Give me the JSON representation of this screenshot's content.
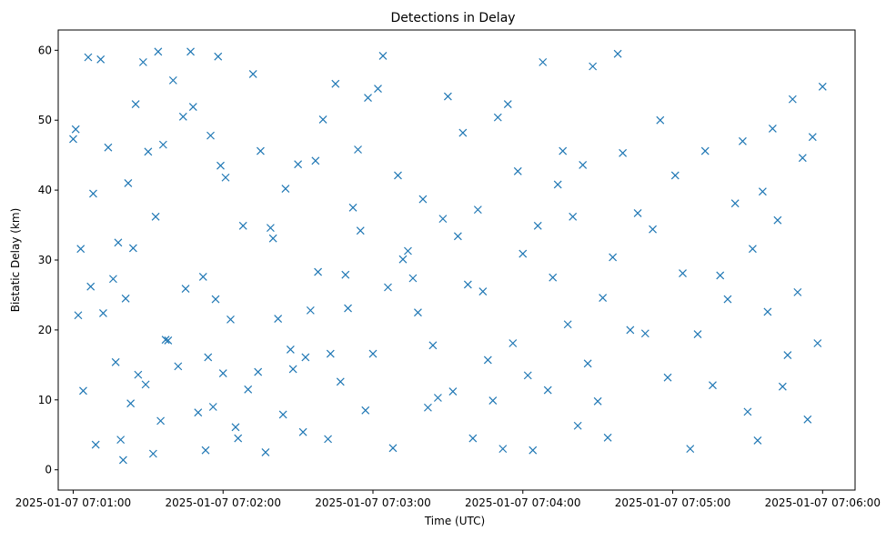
{
  "chart_data": {
    "type": "scatter",
    "title": "Detections in Delay",
    "xlabel": "Time (UTC)",
    "ylabel": "Bistatic Delay (km)",
    "xlim": [
      "2025-01-07 07:00:54",
      "2025-01-07 07:06:13"
    ],
    "ylim": [
      -2.9,
      62.9
    ],
    "xticks": [
      {
        "value": "2025-01-07 07:01:00",
        "label": "2025-01-07 07:01:00"
      },
      {
        "value": "2025-01-07 07:02:00",
        "label": "2025-01-07 07:02:00"
      },
      {
        "value": "2025-01-07 07:03:00",
        "label": "2025-01-07 07:03:00"
      },
      {
        "value": "2025-01-07 07:04:00",
        "label": "2025-01-07 07:04:00"
      },
      {
        "value": "2025-01-07 07:05:00",
        "label": "2025-01-07 07:05:00"
      },
      {
        "value": "2025-01-07 07:06:00",
        "label": "2025-01-07 07:06:00"
      }
    ],
    "yticks": [
      0,
      10,
      20,
      30,
      40,
      50,
      60
    ],
    "grid": false,
    "legend": "none",
    "marker": "x",
    "color": "#1f77b4",
    "x": [
      "2025-01-07 07:01:00",
      "2025-01-07 07:01:01",
      "2025-01-07 07:01:02",
      "2025-01-07 07:01:03",
      "2025-01-07 07:01:04",
      "2025-01-07 07:01:06",
      "2025-01-07 07:01:07",
      "2025-01-07 07:01:08",
      "2025-01-07 07:01:09",
      "2025-01-07 07:01:11",
      "2025-01-07 07:01:12",
      "2025-01-07 07:01:14",
      "2025-01-07 07:01:16",
      "2025-01-07 07:01:17",
      "2025-01-07 07:01:18",
      "2025-01-07 07:01:19",
      "2025-01-07 07:01:20",
      "2025-01-07 07:01:21",
      "2025-01-07 07:01:22",
      "2025-01-07 07:01:23",
      "2025-01-07 07:01:24",
      "2025-01-07 07:01:25",
      "2025-01-07 07:01:26",
      "2025-01-07 07:01:28",
      "2025-01-07 07:01:29",
      "2025-01-07 07:01:30",
      "2025-01-07 07:01:32",
      "2025-01-07 07:01:33",
      "2025-01-07 07:01:34",
      "2025-01-07 07:01:35",
      "2025-01-07 07:01:36",
      "2025-01-07 07:01:37",
      "2025-01-07 07:01:38",
      "2025-01-07 07:01:40",
      "2025-01-07 07:01:42",
      "2025-01-07 07:01:44",
      "2025-01-07 07:01:45",
      "2025-01-07 07:01:47",
      "2025-01-07 07:01:48",
      "2025-01-07 07:01:50",
      "2025-01-07 07:01:52",
      "2025-01-07 07:01:53",
      "2025-01-07 07:01:54",
      "2025-01-07 07:01:55",
      "2025-01-07 07:01:56",
      "2025-01-07 07:01:57",
      "2025-01-07 07:01:58",
      "2025-01-07 07:01:59",
      "2025-01-07 07:02:00",
      "2025-01-07 07:02:01",
      "2025-01-07 07:02:03",
      "2025-01-07 07:02:05",
      "2025-01-07 07:02:06",
      "2025-01-07 07:02:08",
      "2025-01-07 07:02:10",
      "2025-01-07 07:02:12",
      "2025-01-07 07:02:14",
      "2025-01-07 07:02:15",
      "2025-01-07 07:02:17",
      "2025-01-07 07:02:19",
      "2025-01-07 07:02:20",
      "2025-01-07 07:02:22",
      "2025-01-07 07:02:24",
      "2025-01-07 07:02:25",
      "2025-01-07 07:02:27",
      "2025-01-07 07:02:28",
      "2025-01-07 07:02:30",
      "2025-01-07 07:02:32",
      "2025-01-07 07:02:33",
      "2025-01-07 07:02:35",
      "2025-01-07 07:02:37",
      "2025-01-07 07:02:38",
      "2025-01-07 07:02:40",
      "2025-01-07 07:02:42",
      "2025-01-07 07:02:43",
      "2025-01-07 07:02:45",
      "2025-01-07 07:02:47",
      "2025-01-07 07:02:49",
      "2025-01-07 07:02:50",
      "2025-01-07 07:02:52",
      "2025-01-07 07:02:54",
      "2025-01-07 07:02:55",
      "2025-01-07 07:02:57",
      "2025-01-07 07:02:58",
      "2025-01-07 07:03:00",
      "2025-01-07 07:03:02",
      "2025-01-07 07:03:04",
      "2025-01-07 07:03:06",
      "2025-01-07 07:03:08",
      "2025-01-07 07:03:10",
      "2025-01-07 07:03:12",
      "2025-01-07 07:03:14",
      "2025-01-07 07:03:16",
      "2025-01-07 07:03:18",
      "2025-01-07 07:03:20",
      "2025-01-07 07:03:22",
      "2025-01-07 07:03:24",
      "2025-01-07 07:03:26",
      "2025-01-07 07:03:28",
      "2025-01-07 07:03:30",
      "2025-01-07 07:03:32",
      "2025-01-07 07:03:34",
      "2025-01-07 07:03:36",
      "2025-01-07 07:03:38",
      "2025-01-07 07:03:40",
      "2025-01-07 07:03:42",
      "2025-01-07 07:03:44",
      "2025-01-07 07:03:46",
      "2025-01-07 07:03:48",
      "2025-01-07 07:03:50",
      "2025-01-07 07:03:52",
      "2025-01-07 07:03:54",
      "2025-01-07 07:03:56",
      "2025-01-07 07:03:58",
      "2025-01-07 07:04:00",
      "2025-01-07 07:04:02",
      "2025-01-07 07:04:04",
      "2025-01-07 07:04:06",
      "2025-01-07 07:04:08",
      "2025-01-07 07:04:10",
      "2025-01-07 07:04:12",
      "2025-01-07 07:04:14",
      "2025-01-07 07:04:16",
      "2025-01-07 07:04:18",
      "2025-01-07 07:04:20",
      "2025-01-07 07:04:22",
      "2025-01-07 07:04:24",
      "2025-01-07 07:04:26",
      "2025-01-07 07:04:28",
      "2025-01-07 07:04:30",
      "2025-01-07 07:04:32",
      "2025-01-07 07:04:34",
      "2025-01-07 07:04:36",
      "2025-01-07 07:04:38",
      "2025-01-07 07:04:40",
      "2025-01-07 07:04:43",
      "2025-01-07 07:04:46",
      "2025-01-07 07:04:49",
      "2025-01-07 07:04:52",
      "2025-01-07 07:04:55",
      "2025-01-07 07:04:58",
      "2025-01-07 07:05:01",
      "2025-01-07 07:05:04",
      "2025-01-07 07:05:07",
      "2025-01-07 07:05:10",
      "2025-01-07 07:05:13",
      "2025-01-07 07:05:16",
      "2025-01-07 07:05:19",
      "2025-01-07 07:05:22",
      "2025-01-07 07:05:25",
      "2025-01-07 07:05:28",
      "2025-01-07 07:05:30",
      "2025-01-07 07:05:32",
      "2025-01-07 07:05:34",
      "2025-01-07 07:05:36",
      "2025-01-07 07:05:38",
      "2025-01-07 07:05:40",
      "2025-01-07 07:05:42",
      "2025-01-07 07:05:44",
      "2025-01-07 07:05:46",
      "2025-01-07 07:05:48",
      "2025-01-07 07:05:50",
      "2025-01-07 07:05:52",
      "2025-01-07 07:05:54",
      "2025-01-07 07:05:56",
      "2025-01-07 07:05:58",
      "2025-01-07 07:06:00"
    ],
    "y": [
      47.3,
      48.7,
      22.1,
      31.6,
      11.3,
      59.0,
      26.2,
      39.5,
      3.6,
      58.7,
      22.4,
      46.1,
      27.3,
      15.4,
      32.5,
      4.3,
      1.4,
      24.5,
      41.0,
      9.5,
      31.7,
      52.3,
      13.6,
      58.3,
      12.2,
      45.5,
      2.3,
      36.2,
      59.8,
      7.0,
      46.5,
      18.6,
      18.5,
      55.7,
      14.8,
      50.5,
      25.9,
      59.8,
      51.9,
      8.2,
      27.6,
      2.8,
      16.1,
      47.8,
      9.0,
      24.4,
      59.1,
      43.5,
      13.8,
      41.8,
      21.5,
      6.1,
      4.5,
      34.9,
      11.5,
      56.6,
      14.0,
      45.6,
      2.5,
      34.6,
      33.1,
      21.6,
      7.9,
      40.2,
      17.2,
      14.4,
      43.7,
      5.4,
      16.1,
      22.8,
      44.2,
      28.3,
      50.1,
      4.4,
      16.6,
      55.2,
      12.6,
      27.9,
      23.1,
      37.5,
      45.8,
      34.2,
      8.5,
      53.2,
      16.6,
      54.5,
      59.2,
      26.1,
      3.1,
      42.1,
      30.1,
      31.3,
      27.4,
      22.5,
      38.7,
      8.9,
      17.8,
      10.3,
      35.9,
      53.4,
      11.2,
      33.4,
      48.2,
      26.5,
      4.5,
      37.2,
      25.5,
      15.7,
      9.9,
      50.4,
      3.0,
      52.3,
      18.1,
      42.7,
      30.9,
      13.5,
      2.8,
      34.9,
      58.3,
      11.4,
      27.5,
      40.8,
      45.6,
      20.8,
      36.2,
      6.3,
      43.6,
      15.2,
      57.7,
      9.8,
      24.6,
      4.6,
      30.4,
      59.5,
      45.3,
      20.0,
      36.7,
      19.5,
      34.4,
      50.0,
      13.2,
      42.1,
      28.1,
      3.0,
      19.4,
      45.6,
      12.1,
      27.8,
      24.4,
      38.1,
      47.0,
      8.3,
      31.6,
      4.2,
      39.8,
      22.6,
      48.8,
      35.7,
      11.9,
      16.4,
      53.0,
      25.4,
      44.6,
      7.2,
      47.6,
      18.1,
      54.8
    ]
  }
}
